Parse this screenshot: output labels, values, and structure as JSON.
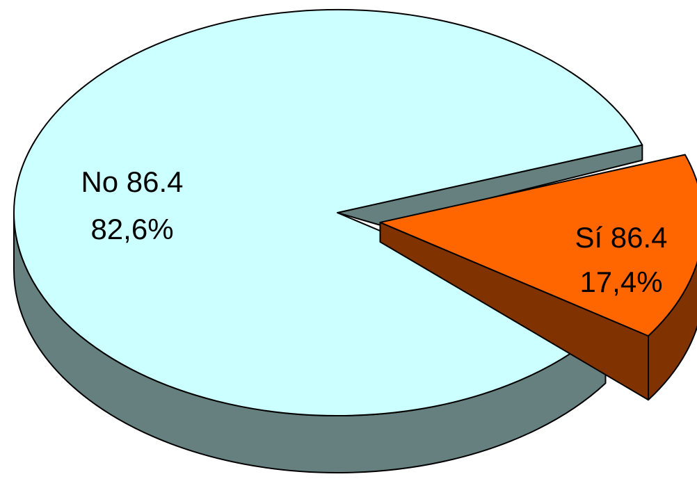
{
  "chart_data": {
    "type": "pie",
    "title": "",
    "style": "3d-exploded",
    "slices": [
      {
        "name": "No",
        "label_line1": "No 86.4",
        "label_line2": "82,6%",
        "percent": 82.6,
        "color": "#ccffff",
        "side_color": "#668080",
        "exploded": false
      },
      {
        "name": "Sí",
        "label_line1": "Sí 86.4",
        "label_line2": "17,4%",
        "percent": 17.4,
        "color": "#ff6600",
        "side_color": "#803300",
        "exploded": true
      }
    ],
    "legend": "none"
  }
}
